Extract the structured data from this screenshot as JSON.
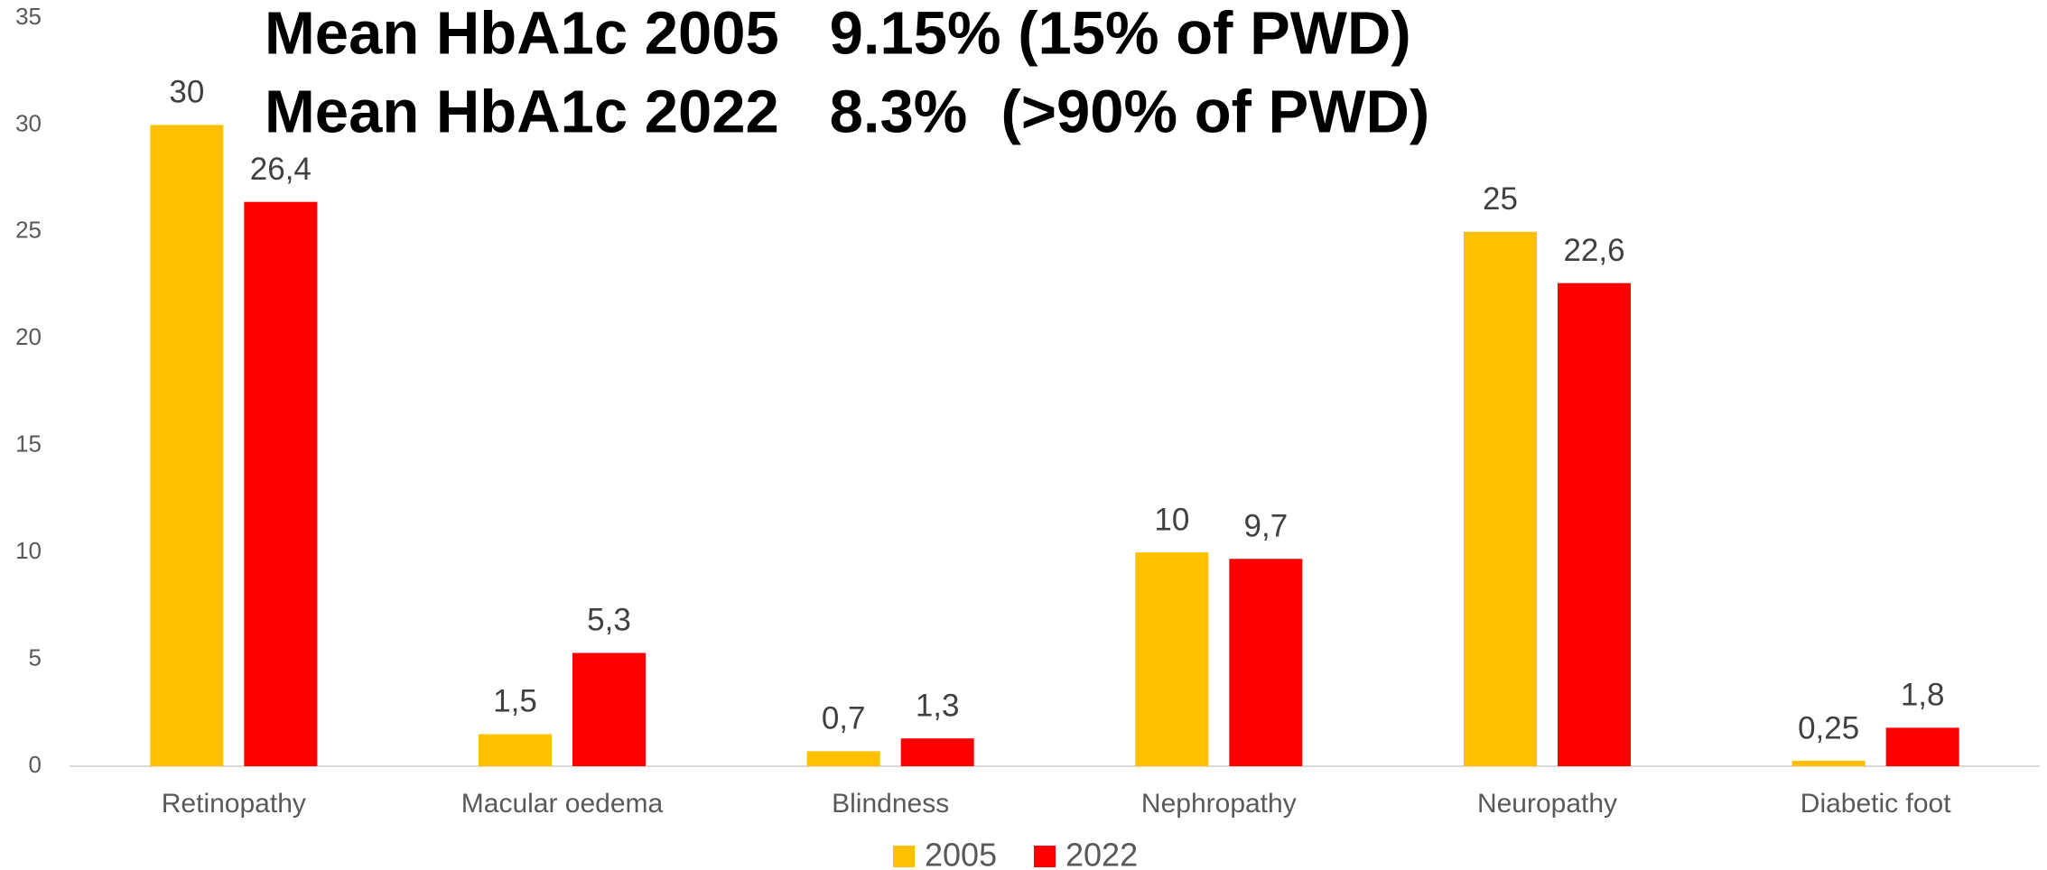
{
  "chart_data": {
    "type": "bar",
    "annotations": [
      "Mean HbA1c 2005   9.15% (15% of PWD)",
      "Mean HbA1c 2022   8.3%  (>90% of PWD)"
    ],
    "categories": [
      "Retinopathy",
      "Macular oedema",
      "Blindness",
      "Nephropathy",
      "Neuropathy",
      "Diabetic foot"
    ],
    "series": [
      {
        "name": "2005",
        "color": "#ffc000",
        "values": [
          30,
          1.5,
          0.7,
          10,
          25,
          0.25
        ],
        "value_labels": [
          "30",
          "1,5",
          "0,7",
          "10",
          "25",
          "0,25"
        ]
      },
      {
        "name": "2022",
        "color": "#ff0000",
        "values": [
          26.4,
          5.3,
          1.3,
          9.7,
          22.6,
          1.8
        ],
        "value_labels": [
          "26,4",
          "5,3",
          "1,3",
          "9,7",
          "22,6",
          "1,8"
        ]
      }
    ],
    "ylim": [
      0,
      35
    ],
    "yticks": [
      0,
      5,
      10,
      15,
      20,
      25,
      30,
      35
    ],
    "grid": false,
    "legend": "bottom"
  }
}
